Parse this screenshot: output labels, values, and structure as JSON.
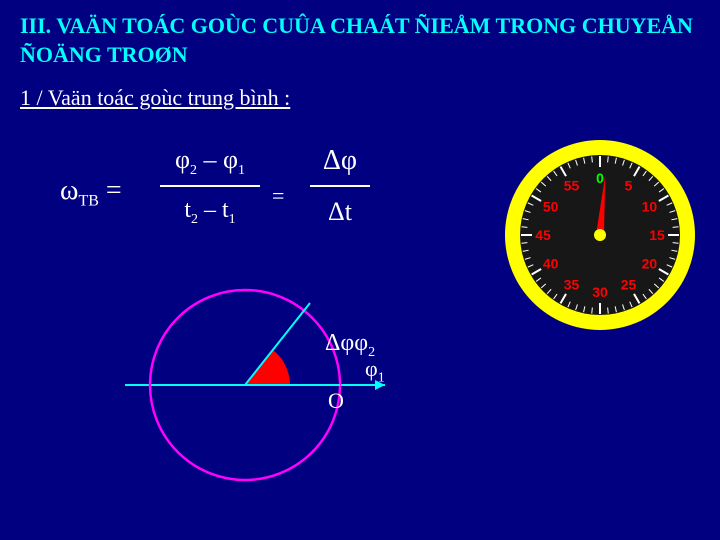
{
  "title": {
    "text": "III. VAÄN TOÁC GOÙC CUÛA CHAÁT ÑIEÅM TRONG CHUYEÅN ÑOÄNG TROØN",
    "color": "#00FFFF"
  },
  "subtitle": {
    "text": "1 / Vaän toác goùc trung bình :",
    "color": "#FFFFFF"
  },
  "formula": {
    "omega": "ω",
    "omega_sub": "TB",
    "eq": " =",
    "num1_p1": "φ",
    "num1_s1": "2",
    "num1_mid": " – φ",
    "num1_s2": "1",
    "den1_p1": "t",
    "den1_s1": "2",
    "den1_mid": " – t",
    "den1_s2": "1",
    "num2": "Δφ",
    "den2": "Δt"
  },
  "diagram": {
    "circle_color": "#FF00FF",
    "axis_color": "#00FFFF",
    "sector_color": "#FF0000",
    "delta_phi": "Δφ",
    "phi2_sub": "2",
    "phi1": "φ",
    "phi1_sub": "1",
    "o": "O"
  },
  "gauge": {
    "ring_color": "#FFFF00",
    "face_color": "#171717",
    "tick_color": "#FFFFFF",
    "needle_color": "#FF0000",
    "hub_color": "#FFFF00",
    "labels": [
      {
        "v": "0",
        "angle": -90,
        "color": "#00FF00"
      },
      {
        "v": "5",
        "angle": -60,
        "color": "#FF0000"
      },
      {
        "v": "10",
        "angle": -30,
        "color": "#FF0000"
      },
      {
        "v": "15",
        "angle": 0,
        "color": "#FF0000"
      },
      {
        "v": "20",
        "angle": 30,
        "color": "#FF0000"
      },
      {
        "v": "25",
        "angle": 60,
        "color": "#FF0000"
      },
      {
        "v": "30",
        "angle": 90,
        "color": "#FF0000"
      },
      {
        "v": "35",
        "angle": 120,
        "color": "#FF0000"
      },
      {
        "v": "40",
        "angle": 150,
        "color": "#FF0000"
      },
      {
        "v": "45",
        "angle": 180,
        "color": "#FF0000"
      },
      {
        "v": "50",
        "angle": 210,
        "color": "#FF0000"
      },
      {
        "v": "55",
        "angle": 240,
        "color": "#FF0000"
      }
    ],
    "needle_angle": -85
  }
}
